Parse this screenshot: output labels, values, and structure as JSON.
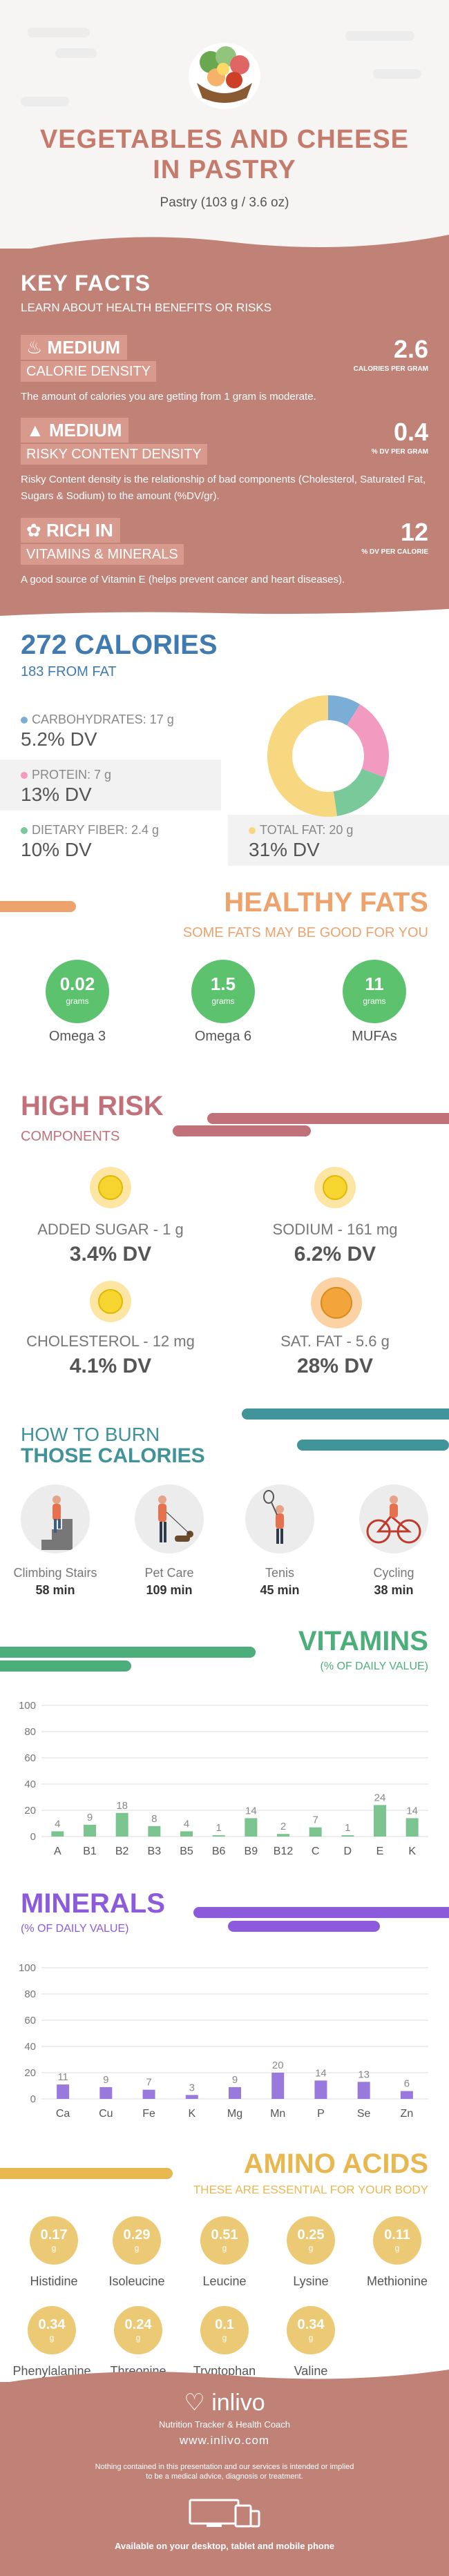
{
  "header": {
    "title_line1": "VEGETABLES AND CHEESE",
    "title_line2": "IN PASTRY",
    "subtitle": "Pastry (103 g / 3.6 oz)"
  },
  "key_facts": {
    "title": "KEY FACTS",
    "subtitle": "LEARN ABOUT HEALTH BENEFITS OR RISKS",
    "items": [
      {
        "level": "MEDIUM",
        "label": "CALORIE DENSITY",
        "value": "2.6",
        "unit": "CALORIES PER GRAM",
        "desc": "The amount of calories you are getting from 1 gram is moderate.",
        "icon": "flame-icon"
      },
      {
        "level": "MEDIUM",
        "label": "RISKY CONTENT DENSITY",
        "value": "0.4",
        "unit": "% DV PER GRAM",
        "desc": "Risky Content density is the relationship of bad components (Cholesterol, Saturated Fat, Sugars & Sodium) to the amount (%DV/gr).",
        "icon": "warning-icon"
      },
      {
        "level": "RICH  IN",
        "label": "VITAMINS & MINERALS",
        "value": "12",
        "unit": "% DV PER CALORIE",
        "desc": "A good source of Vitamin E (helps prevent cancer and heart diseases).",
        "icon": "leaf-icon"
      }
    ]
  },
  "calories": {
    "title": "272 CALORIES",
    "subtitle": "183 FROM FAT",
    "nutrients": [
      {
        "label": "CARBOHYDRATES: 17 g",
        "dv": "5.2% DV",
        "color": "#7aaed6",
        "pct": 5.2
      },
      {
        "label": "PROTEIN: 7 g",
        "dv": "13% DV",
        "color": "#f29ac0",
        "pct": 13
      },
      {
        "label": "DIETARY FIBER: 2.4 g",
        "dv": "10% DV",
        "color": "#79c99a",
        "pct": 10
      },
      {
        "label": "TOTAL FAT: 20 g",
        "dv": "31% DV",
        "color": "#f7d880",
        "pct": 31
      }
    ]
  },
  "healthy_fats": {
    "title": "HEALTHY FATS",
    "subtitle": "SOME FATS MAY BE GOOD FOR YOU",
    "items": [
      {
        "value": "0.02",
        "unit": "grams",
        "name": "Omega 3"
      },
      {
        "value": "1.5",
        "unit": "grams",
        "name": "Omega 6"
      },
      {
        "value": "11",
        "unit": "grams",
        "name": "MUFAs"
      }
    ]
  },
  "high_risk": {
    "title": "HIGH RISK",
    "subtitle": "COMPONENTS",
    "items": [
      {
        "label": "ADDED SUGAR - 1 g",
        "dv": "3.4% DV"
      },
      {
        "label": "SODIUM - 161 mg",
        "dv": "6.2% DV"
      },
      {
        "label": "CHOLESTEROL - 12 mg",
        "dv": "4.1% DV"
      },
      {
        "label": "SAT. FAT - 5.6 g",
        "dv": "28% DV"
      }
    ]
  },
  "burn": {
    "title1": "HOW TO BURN",
    "title2": "THOSE CALORIES",
    "items": [
      {
        "name": "Climbing Stairs",
        "minutes": "58 min",
        "icon": "stairs-icon"
      },
      {
        "name": "Pet Care",
        "minutes": "109 min",
        "icon": "dog-walk-icon"
      },
      {
        "name": "Tenis",
        "minutes": "45 min",
        "icon": "tennis-icon"
      },
      {
        "name": "Cycling",
        "minutes": "38 min",
        "icon": "bicycle-icon"
      }
    ]
  },
  "vitamins": {
    "title": "VITAMINS",
    "subtitle": "(% OF DAILY VALUE)"
  },
  "minerals": {
    "title": "MINERALS",
    "subtitle": "(% OF DAILY VALUE)"
  },
  "chart_data": [
    {
      "type": "bar",
      "title": "VITAMINS",
      "subtitle": "(% OF DAILY VALUE)",
      "categories": [
        "A",
        "B1",
        "B2",
        "B3",
        "B5",
        "B6",
        "B9",
        "B12",
        "C",
        "D",
        "E",
        "K"
      ],
      "values": [
        4,
        9,
        18,
        8,
        4,
        1,
        14,
        2,
        7,
        1,
        24,
        14
      ],
      "ylim": [
        0,
        100
      ],
      "yticks": [
        0,
        20,
        40,
        60,
        80,
        100
      ],
      "grid": true,
      "color": "#7cc48f"
    },
    {
      "type": "bar",
      "title": "MINERALS",
      "subtitle": "(% OF DAILY VALUE)",
      "categories": [
        "Ca",
        "Cu",
        "Fe",
        "K",
        "Mg",
        "Mn",
        "P",
        "Se",
        "Zn"
      ],
      "values": [
        11,
        9,
        7,
        3,
        9,
        20,
        14,
        13,
        6
      ],
      "ylim": [
        0,
        100
      ],
      "yticks": [
        0,
        20,
        40,
        60,
        80,
        100
      ],
      "grid": true,
      "color": "#9a79dd"
    }
  ],
  "amino": {
    "title": "AMINO ACIDS",
    "subtitle": "THESE ARE ESSENTIAL FOR YOUR BODY",
    "items": [
      {
        "value": "0.17",
        "unit": "g",
        "name": "Histidine"
      },
      {
        "value": "0.29",
        "unit": "g",
        "name": "Isoleucine"
      },
      {
        "value": "0.51",
        "unit": "g",
        "name": "Leucine"
      },
      {
        "value": "0.25",
        "unit": "g",
        "name": "Lysine"
      },
      {
        "value": "0.11",
        "unit": "g",
        "name": "Methionine"
      },
      {
        "value": "0.34",
        "unit": "g",
        "name": "Phenylalanine"
      },
      {
        "value": "0.24",
        "unit": "g",
        "name": "Threonine"
      },
      {
        "value": "0.1",
        "unit": "g",
        "name": "Tryptophan"
      },
      {
        "value": "0.34",
        "unit": "g",
        "name": "Valine"
      }
    ]
  },
  "footer": {
    "brand": "inlivo",
    "tagline": "Nutrition Tracker & Health Coach",
    "url": "www.inlivo.com",
    "disclaimer1": "Nothing contained in this presentation and our services is intended or implied",
    "disclaimer2": "to be a medical advice, diagnosis or treatment.",
    "available": "Available on your desktop, tablet and mobile phone"
  },
  "colors": {
    "rose": "#c08277",
    "orange": "#efa36c",
    "green": "#4cae7a",
    "teal": "#3f9399",
    "purple": "#8c5bdc",
    "gold": "#e9b74f",
    "blue": "#3f7ab0"
  }
}
